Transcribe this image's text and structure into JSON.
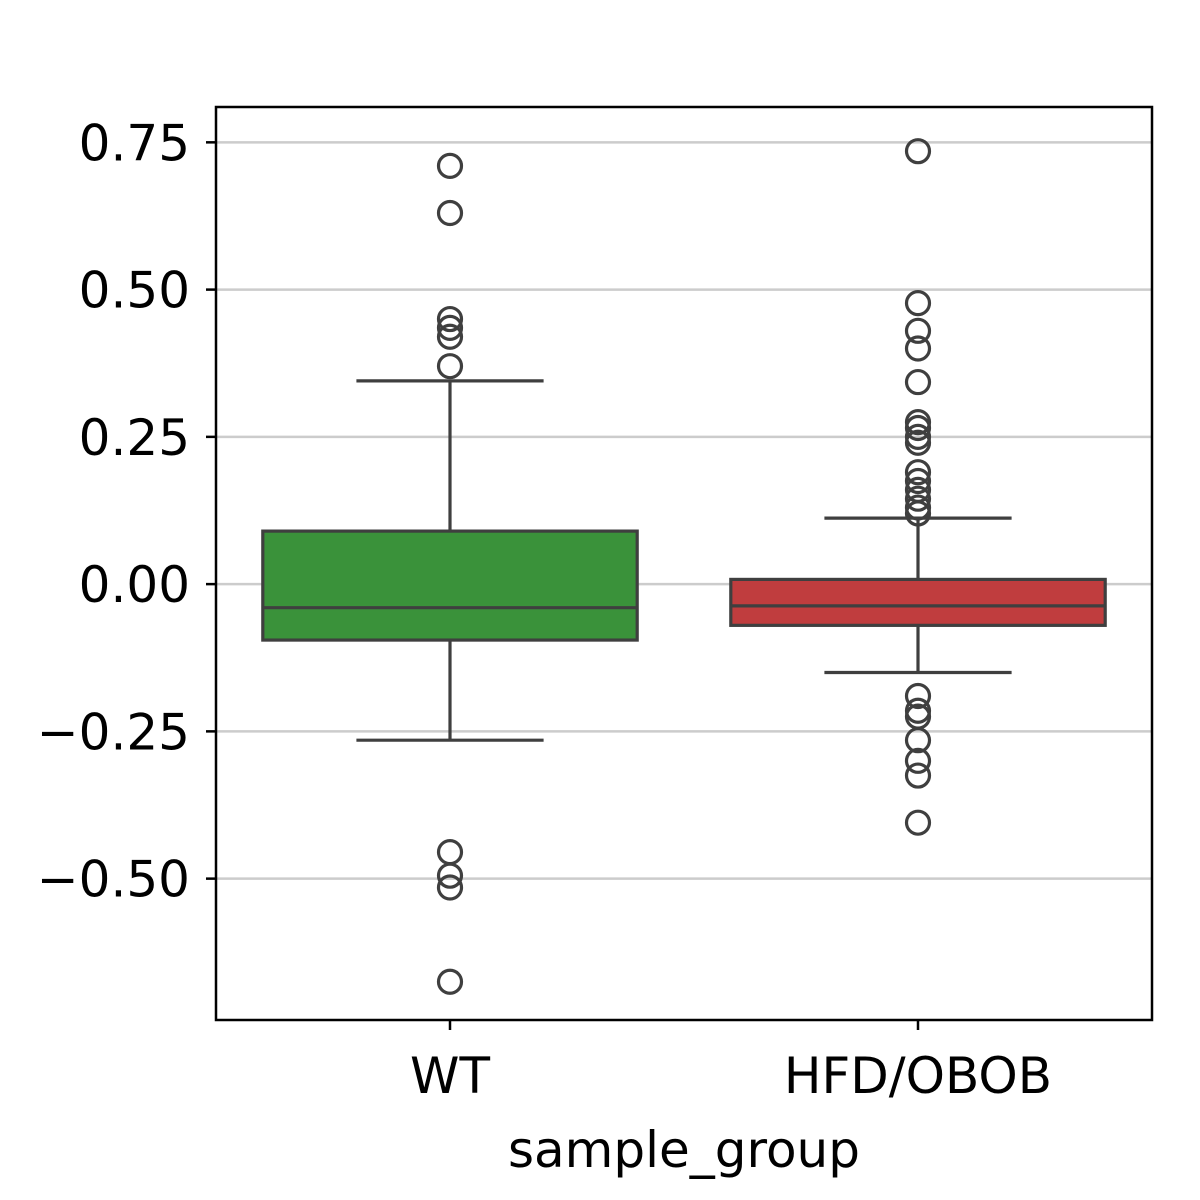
{
  "chart_data": {
    "type": "box",
    "title": "",
    "xlabel": "sample_group",
    "ylabel": "",
    "categories": [
      "WT",
      "HFD/OBOB"
    ],
    "ylim": [
      -0.74,
      0.81
    ],
    "yticks": [
      -0.5,
      -0.25,
      0.0,
      0.25,
      0.5,
      0.75
    ],
    "ytick_labels": [
      "−0.50",
      "−0.25",
      "0.00",
      "0.25",
      "0.50",
      "0.75"
    ],
    "grid": "horizontal",
    "legend": "none",
    "boxes": [
      {
        "category": "WT",
        "color": "#3a923a",
        "whisker_low": -0.265,
        "q1": -0.095,
        "median": -0.04,
        "q3": 0.09,
        "whisker_high": 0.345,
        "outliers": [
          0.71,
          0.63,
          0.45,
          0.435,
          0.42,
          0.37,
          -0.455,
          -0.495,
          -0.515,
          -0.675
        ]
      },
      {
        "category": "HFD/OBOB",
        "color": "#c03d3e",
        "whisker_low": -0.15,
        "q1": -0.07,
        "median": -0.037,
        "q3": 0.008,
        "whisker_high": 0.112,
        "outliers": [
          0.735,
          0.477,
          0.43,
          0.4,
          0.343,
          0.275,
          0.265,
          0.25,
          0.24,
          0.19,
          0.175,
          0.16,
          0.145,
          0.13,
          0.12,
          -0.19,
          -0.215,
          -0.225,
          -0.265,
          -0.3,
          -0.325,
          -0.405
        ]
      }
    ]
  }
}
